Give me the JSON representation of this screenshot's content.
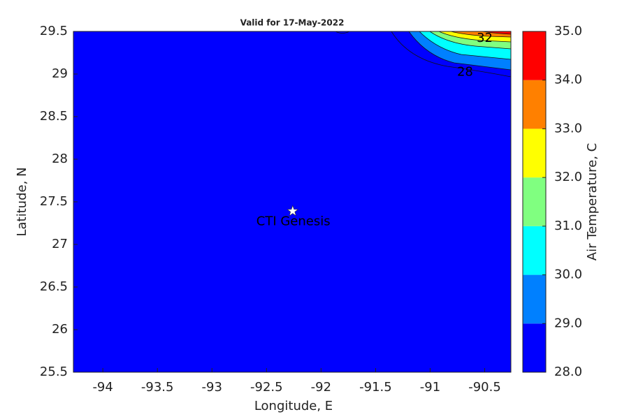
{
  "chart_data": {
    "type": "contour-map",
    "title": "Valid for 17-May-2022",
    "xlabel": "Longitude, E",
    "ylabel": "Latitude, N",
    "xlim": [
      -94.27,
      -90.26
    ],
    "ylim": [
      25.5,
      29.5
    ],
    "xticks": [
      -94,
      -93.5,
      -93,
      -92.5,
      -92,
      -91.5,
      -91,
      -90.5
    ],
    "yticks": [
      25.5,
      26,
      26.5,
      27,
      27.5,
      28,
      28.5,
      29,
      29.5
    ],
    "background_color": "#0000ff",
    "colorbar": {
      "label": "Air Temperature, C",
      "ticks": [
        {
          "value": 28,
          "label": "28.0"
        },
        {
          "value": 29,
          "label": "29.0"
        },
        {
          "value": 30,
          "label": "30.0"
        },
        {
          "value": 31,
          "label": "31.0"
        },
        {
          "value": 32,
          "label": "32.0"
        },
        {
          "value": 33,
          "label": "33.0"
        },
        {
          "value": 34,
          "label": "34.0"
        },
        {
          "value": 35,
          "label": "35.0"
        }
      ],
      "colors": [
        "#0000ff",
        "#0080ff",
        "#00ffff",
        "#80ff80",
        "#ffff00",
        "#ff8000",
        "#ff0000"
      ]
    },
    "marker": {
      "label": "CTI Genesis",
      "x": -92.26,
      "y": 27.39
    },
    "contour_labels": [
      {
        "x": -90.5,
        "y": 29.42,
        "value": 32
      },
      {
        "x": -90.68,
        "y": 29.02,
        "value": 28
      }
    ]
  }
}
